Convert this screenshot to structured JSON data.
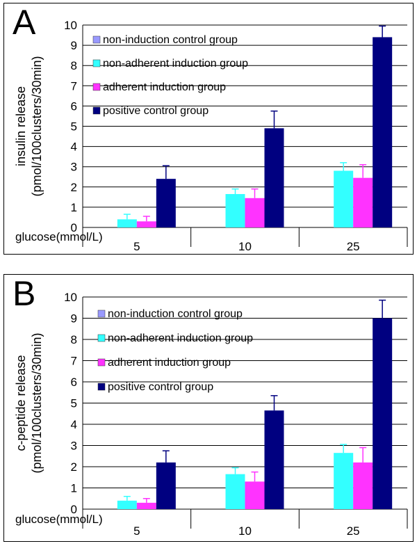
{
  "chart_data": [
    {
      "panel_label": "A",
      "type": "bar",
      "ylabel_line1": "insulin release",
      "ylabel_line2": "(pmol/100clusters/30min)",
      "xlabel": "glucose(mmol/L)",
      "categories": [
        "5",
        "10",
        "25"
      ],
      "ylim": [
        0,
        10
      ],
      "yticks": [
        "0",
        "1",
        "2",
        "3",
        "4",
        "5",
        "6",
        "7",
        "8",
        "9",
        "10"
      ],
      "grid": true,
      "legend_position": "top-left",
      "series": [
        {
          "name": "non-induction control group",
          "color": "#9999ff",
          "values": [
            0,
            0,
            0
          ],
          "errors": [
            0,
            0,
            0
          ]
        },
        {
          "name": "non-adherent induction group",
          "color": "#33ffff",
          "values": [
            0.4,
            1.65,
            2.8
          ],
          "errors": [
            0.25,
            0.25,
            0.4
          ]
        },
        {
          "name": "adherent induction group",
          "color": "#ff33ff",
          "values": [
            0.3,
            1.45,
            2.45
          ],
          "errors": [
            0.25,
            0.45,
            0.65
          ]
        },
        {
          "name": "positive control group",
          "color": "#000080",
          "values": [
            2.4,
            4.9,
            9.4
          ],
          "errors": [
            0.65,
            0.85,
            0.55
          ]
        }
      ]
    },
    {
      "panel_label": "B",
      "type": "bar",
      "ylabel_line1": "c-peptide release",
      "ylabel_line2": "(pmol/100clusters/30min)",
      "xlabel": "glucose(mmol/L)",
      "categories": [
        "5",
        "10",
        "25"
      ],
      "ylim": [
        0,
        10
      ],
      "yticks": [
        "0",
        "1",
        "2",
        "3",
        "4",
        "5",
        "6",
        "7",
        "8",
        "9",
        "10"
      ],
      "grid": true,
      "legend_position": "top-left",
      "series": [
        {
          "name": "non-induction control group",
          "color": "#9999ff",
          "values": [
            0,
            0,
            0
          ],
          "errors": [
            0,
            0,
            0
          ]
        },
        {
          "name": "non-adherent induction group",
          "color": "#33ffff",
          "values": [
            0.4,
            1.65,
            2.65
          ],
          "errors": [
            0.2,
            0.3,
            0.4
          ]
        },
        {
          "name": "adherent induction group",
          "color": "#ff33ff",
          "values": [
            0.3,
            1.3,
            2.2
          ],
          "errors": [
            0.2,
            0.45,
            0.7
          ]
        },
        {
          "name": "positive control group",
          "color": "#000080",
          "values": [
            2.2,
            4.65,
            9.0
          ],
          "errors": [
            0.55,
            0.7,
            0.85
          ]
        }
      ]
    }
  ]
}
